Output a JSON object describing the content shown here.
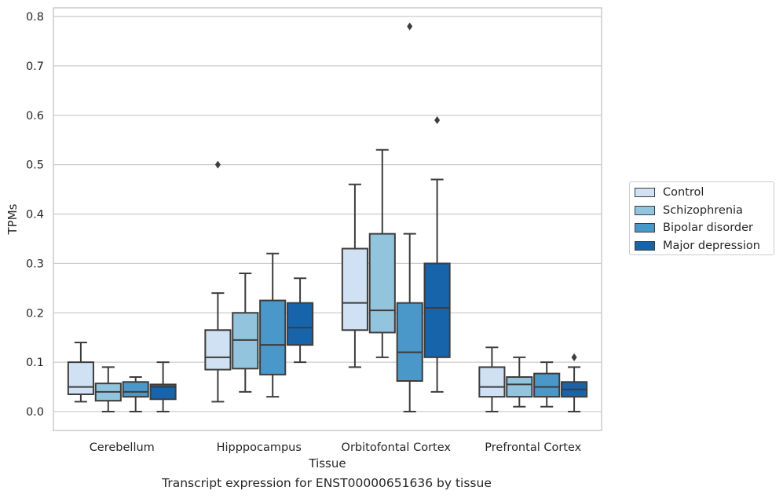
{
  "chart_data": {
    "type": "box",
    "caption": "Transcript expression for ENST00000651636 by tissue",
    "xlabel": "Tissue",
    "ylabel": "TPMs",
    "ylim": [
      -0.038,
      0.82
    ],
    "yticks": [
      0.0,
      0.1,
      0.2,
      0.3,
      0.4,
      0.5,
      0.6,
      0.7,
      0.8
    ],
    "ytick_labels": [
      "0.0",
      "0.1",
      "0.2",
      "0.3",
      "0.4",
      "0.5",
      "0.6",
      "0.7",
      "0.8"
    ],
    "grid": "horizontal",
    "legend_position": "right",
    "categories": [
      "Cerebellum",
      "Hipppocampus",
      "Orbitofontal Cortex",
      "Prefrontal Cortex"
    ],
    "series": [
      {
        "name": "Control",
        "color": "#cfe1f2",
        "boxes": [
          {
            "whislo": 0.02,
            "q1": 0.035,
            "med": 0.05,
            "q3": 0.1,
            "whishi": 0.14,
            "fliers": []
          },
          {
            "whislo": 0.02,
            "q1": 0.085,
            "med": 0.11,
            "q3": 0.165,
            "whishi": 0.24,
            "fliers": [
              0.5
            ]
          },
          {
            "whislo": 0.09,
            "q1": 0.165,
            "med": 0.22,
            "q3": 0.33,
            "whishi": 0.46,
            "fliers": []
          },
          {
            "whislo": 0.0,
            "q1": 0.03,
            "med": 0.05,
            "q3": 0.09,
            "whishi": 0.13,
            "fliers": []
          }
        ]
      },
      {
        "name": "Schizophrenia",
        "color": "#93c4de",
        "boxes": [
          {
            "whislo": 0.0,
            "q1": 0.022,
            "med": 0.04,
            "q3": 0.057,
            "whishi": 0.09,
            "fliers": []
          },
          {
            "whislo": 0.04,
            "q1": 0.087,
            "med": 0.145,
            "q3": 0.2,
            "whishi": 0.28,
            "fliers": []
          },
          {
            "whislo": 0.11,
            "q1": 0.16,
            "med": 0.205,
            "q3": 0.36,
            "whishi": 0.53,
            "fliers": []
          },
          {
            "whislo": 0.01,
            "q1": 0.03,
            "med": 0.055,
            "q3": 0.07,
            "whishi": 0.11,
            "fliers": []
          }
        ]
      },
      {
        "name": "Bipolar disorder",
        "color": "#4a98c9",
        "boxes": [
          {
            "whislo": 0.0,
            "q1": 0.03,
            "med": 0.04,
            "q3": 0.06,
            "whishi": 0.07,
            "fliers": []
          },
          {
            "whislo": 0.03,
            "q1": 0.075,
            "med": 0.135,
            "q3": 0.225,
            "whishi": 0.32,
            "fliers": []
          },
          {
            "whislo": 0.0,
            "q1": 0.062,
            "med": 0.12,
            "q3": 0.22,
            "whishi": 0.36,
            "fliers": [
              0.78
            ]
          },
          {
            "whislo": 0.01,
            "q1": 0.03,
            "med": 0.05,
            "q3": 0.077,
            "whishi": 0.1,
            "fliers": []
          }
        ]
      },
      {
        "name": "Major depression",
        "color": "#1764ab",
        "boxes": [
          {
            "whislo": 0.0,
            "q1": 0.025,
            "med": 0.05,
            "q3": 0.055,
            "whishi": 0.1,
            "fliers": []
          },
          {
            "whislo": 0.1,
            "q1": 0.135,
            "med": 0.17,
            "q3": 0.22,
            "whishi": 0.27,
            "fliers": []
          },
          {
            "whislo": 0.04,
            "q1": 0.11,
            "med": 0.21,
            "q3": 0.3,
            "whishi": 0.47,
            "fliers": [
              0.59
            ]
          },
          {
            "whislo": 0.0,
            "q1": 0.03,
            "med": 0.045,
            "q3": 0.06,
            "whishi": 0.09,
            "fliers": [
              0.11
            ]
          }
        ]
      }
    ]
  }
}
